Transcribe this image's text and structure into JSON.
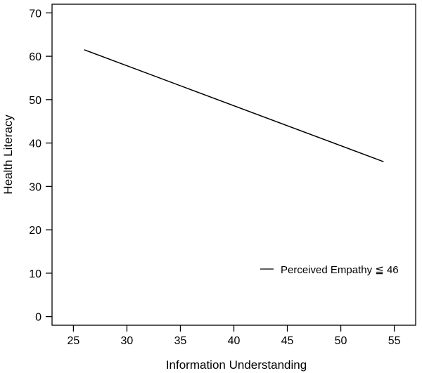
{
  "chart_data": {
    "type": "line",
    "xlabel": "Information Understanding",
    "ylabel": "Health Literacy",
    "xlim": [
      23,
      57
    ],
    "ylim": [
      -2,
      72
    ],
    "xticks": [
      25,
      30,
      35,
      40,
      45,
      50,
      55
    ],
    "yticks": [
      0,
      10,
      20,
      30,
      40,
      50,
      60,
      70
    ],
    "grid": false,
    "legend_position": "bottom-right",
    "series": [
      {
        "name": "Perceived Empathy ≦ 46",
        "color": "#000000",
        "x": [
          26,
          54
        ],
        "y": [
          61.5,
          35.7
        ]
      }
    ]
  }
}
